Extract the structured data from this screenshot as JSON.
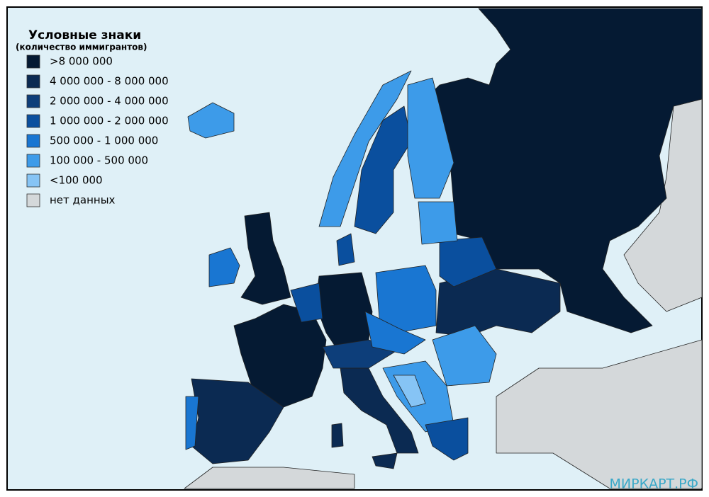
{
  "legend": {
    "title": "Условные знаки",
    "subtitle": "(количество иммигрантов)",
    "items": [
      {
        "label": ">8 000 000",
        "color": "#051a33"
      },
      {
        "label": "4 000 000 - 8 000 000",
        "color": "#0b2a52"
      },
      {
        "label": "2 000 000 - 4 000 000",
        "color": "#0d3e7a"
      },
      {
        "label": "1 000 000 - 2 000 000",
        "color": "#0a4f9e"
      },
      {
        "label": "500 000 - 1 000 000",
        "color": "#1976d2"
      },
      {
        "label": "100 000 - 500 000",
        "color": "#3d9be9"
      },
      {
        "label": "<100 000",
        "color": "#86c4f5"
      },
      {
        "label": "нет данных",
        "color": "#d4d8da"
      }
    ]
  },
  "watermark": "МИРКАРТ.РФ"
}
